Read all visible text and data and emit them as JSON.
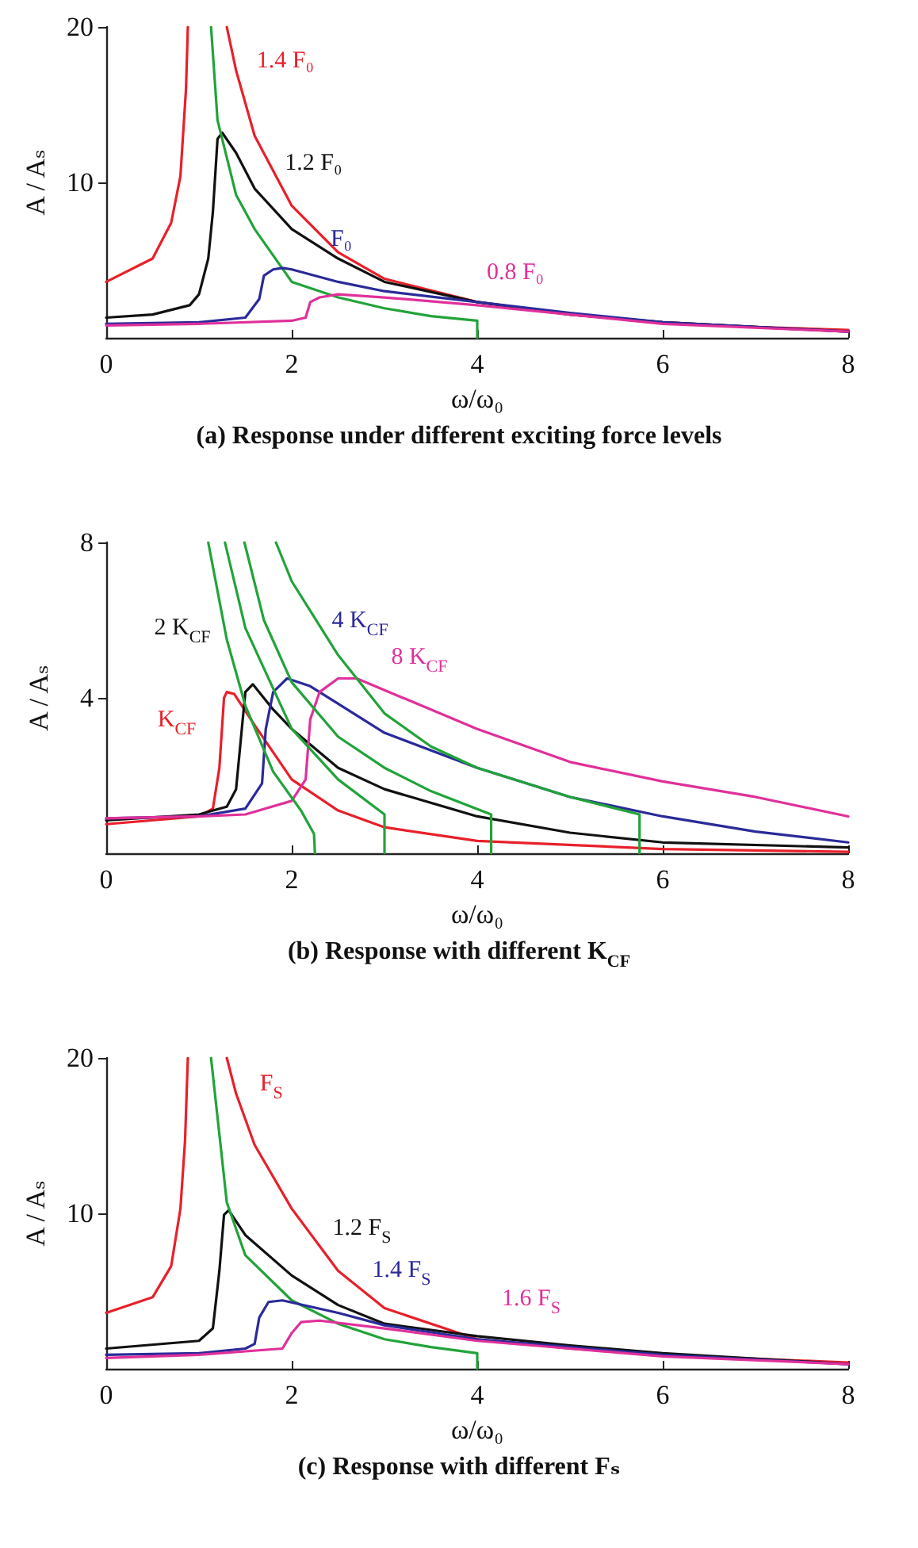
{
  "chart_data": [
    {
      "type": "line",
      "title": "(a) Response under different exciting force levels",
      "xlabel": "ω/ω₀",
      "ylabel": "A / Aₛ",
      "xlim": [
        0,
        8
      ],
      "xticks": [
        0,
        2,
        4,
        6,
        8
      ],
      "ylim": [
        0,
        20
      ],
      "yticks": [
        10,
        20
      ],
      "series": [
        {
          "name": "1.4 F₀",
          "color": "#e8202a",
          "x": [
            0,
            0.5,
            0.7,
            0.8,
            0.86,
            0.88,
            1.1,
            1.3,
            1.4,
            1.6,
            2,
            2.5,
            3,
            4,
            5,
            6,
            7,
            8
          ],
          "values": [
            3.6,
            5.1,
            7.4,
            10.4,
            16,
            20,
            null,
            20,
            17.2,
            13,
            8.5,
            5.5,
            3.8,
            2.3,
            1.5,
            1.0,
            0.7,
            0.5
          ]
        },
        {
          "name": "1.2 F₀",
          "color": "#111111",
          "x": [
            0,
            0.5,
            0.9,
            1,
            1.1,
            1.15,
            1.2,
            1.25,
            1.4,
            1.6,
            2,
            2.5,
            3,
            4,
            5,
            6,
            8
          ],
          "values": [
            1.3,
            1.5,
            2.1,
            2.8,
            5.1,
            8.1,
            12.8,
            13.2,
            11.9,
            9.6,
            7,
            5.1,
            3.6,
            2.3,
            1.5,
            1.0,
            0.4
          ]
        },
        {
          "color": "#22a33a",
          "x": [
            1.13,
            1.2,
            1.4,
            1.6,
            2,
            2.5,
            3,
            3.5,
            4,
            4
          ],
          "values": [
            20,
            14,
            9.2,
            7,
            3.6,
            2.6,
            1.9,
            1.4,
            1.1,
            0
          ]
        },
        {
          "name": "F₀",
          "color": "#2a2a9a",
          "x": [
            0,
            1,
            1.5,
            1.65,
            1.7,
            1.8,
            1.9,
            2,
            2.5,
            3,
            4,
            5,
            6,
            8
          ],
          "values": [
            0.9,
            1.0,
            1.3,
            2.5,
            4.0,
            4.4,
            4.5,
            4.4,
            3.6,
            3.0,
            2.3,
            1.6,
            1.0,
            0.4
          ]
        },
        {
          "name": "0.8 F₀",
          "color": "#e0309a",
          "x": [
            0,
            1,
            2,
            2.15,
            2.2,
            2.3,
            2.5,
            3,
            4,
            5,
            6,
            8
          ],
          "values": [
            0.8,
            0.9,
            1.1,
            1.3,
            2.3,
            2.6,
            2.8,
            2.6,
            2.1,
            1.5,
            0.9,
            0.4
          ]
        }
      ]
    },
    {
      "type": "line",
      "title": "(b) Response with different K$_{CF}$",
      "xlabel": "ω/ω₀",
      "ylabel": "A / Aₛ",
      "xlim": [
        0,
        8
      ],
      "xticks": [
        0,
        2,
        4,
        6,
        8
      ],
      "ylim": [
        0,
        8
      ],
      "yticks": [
        4,
        8
      ],
      "series": [
        {
          "name": "K$_{CF}$",
          "color": "#e8202a",
          "x": [
            0,
            1,
            1.15,
            1.22,
            1.27,
            1.3,
            1.38,
            1.6,
            2,
            2.5,
            3,
            4,
            6,
            8
          ],
          "values": [
            0.75,
            0.95,
            1.15,
            2.2,
            4.0,
            4.15,
            4.1,
            3.3,
            1.9,
            1.1,
            0.67,
            0.32,
            0.11,
            0.04
          ]
        },
        {
          "name": "2 K$_{CF}$",
          "color": "#111111",
          "x": [
            0,
            1,
            1.3,
            1.4,
            1.45,
            1.5,
            1.58,
            1.8,
            2,
            2.5,
            3,
            4,
            5,
            6,
            8
          ],
          "values": [
            0.85,
            1.0,
            1.2,
            1.65,
            2.9,
            4.15,
            4.35,
            3.7,
            3.2,
            2.2,
            1.65,
            0.95,
            0.53,
            0.28,
            0.15
          ]
        },
        {
          "name": "4 K$_{CF}$",
          "color": "#2a2a9a",
          "x": [
            0,
            1,
            1.5,
            1.68,
            1.72,
            1.8,
            1.95,
            2.2,
            2.5,
            3,
            4,
            5,
            6,
            7,
            8
          ],
          "values": [
            0.9,
            0.95,
            1.15,
            1.8,
            3.2,
            4.15,
            4.5,
            4.3,
            3.85,
            3.1,
            2.2,
            1.45,
            0.95,
            0.56,
            0.28
          ]
        },
        {
          "name": "8 K$_{CF}$",
          "color": "#e0309a",
          "x": [
            0,
            1,
            1.5,
            2,
            2.15,
            2.2,
            2.3,
            2.5,
            2.7,
            3,
            4,
            5,
            6,
            7,
            8
          ],
          "values": [
            0.9,
            0.95,
            1.0,
            1.35,
            1.9,
            3.45,
            4.15,
            4.5,
            4.5,
            4.2,
            3.2,
            2.35,
            1.85,
            1.45,
            0.95
          ]
        },
        {
          "color": "#22a33a",
          "x": [
            1.1,
            1.3,
            1.5,
            1.8,
            2.1,
            2.24,
            2.25
          ],
          "values": [
            8,
            5.5,
            3.8,
            2.1,
            1.1,
            0.5,
            0
          ]
        },
        {
          "color": "#22a33a",
          "x": [
            1.28,
            1.5,
            2,
            2.5,
            3,
            3
          ],
          "values": [
            8,
            5.8,
            3.2,
            1.9,
            1.0,
            0
          ]
        },
        {
          "color": "#22a33a",
          "x": [
            1.49,
            1.7,
            2,
            2.5,
            3,
            3.5,
            4.15,
            4.15
          ],
          "values": [
            8,
            6,
            4.4,
            3.0,
            2.2,
            1.6,
            1.0,
            0
          ]
        },
        {
          "color": "#22a33a",
          "x": [
            1.83,
            2,
            2.5,
            3,
            3.5,
            4,
            5,
            5.75,
            5.75
          ],
          "values": [
            8,
            7,
            5.1,
            3.6,
            2.75,
            2.2,
            1.45,
            1.0,
            0
          ]
        }
      ]
    },
    {
      "type": "line",
      "title": "(c) Response with different Fₛ",
      "xlabel": "ω/ω₀",
      "ylabel": "A / Aₛ",
      "xlim": [
        0,
        8
      ],
      "xticks": [
        0,
        2,
        4,
        6,
        8
      ],
      "ylim": [
        0,
        20
      ],
      "yticks": [
        10,
        20
      ],
      "series": [
        {
          "name": "F$_{S}$",
          "color": "#e8202a",
          "x": [
            0,
            0.5,
            0.7,
            0.8,
            0.85,
            0.88,
            1.1,
            1.3,
            1.4,
            1.6,
            2,
            2.5,
            3,
            4,
            5,
            6,
            8
          ],
          "values": [
            3.6,
            4.6,
            6.6,
            10.3,
            14.7,
            20,
            null,
            20,
            17.7,
            14.4,
            10.3,
            6.3,
            3.9,
            1.9,
            1.3,
            0.9,
            0.4
          ]
        },
        {
          "name": "1.2 F$_{S}$",
          "color": "#111111",
          "x": [
            0,
            1,
            1.15,
            1.22,
            1.27,
            1.32,
            1.5,
            2,
            2.5,
            3,
            4,
            5,
            6,
            8
          ],
          "values": [
            1.3,
            1.8,
            2.6,
            6.3,
            9.9,
            10.2,
            8.6,
            6.0,
            4.1,
            2.9,
            2.1,
            1.5,
            1.0,
            0.3
          ]
        },
        {
          "color": "#22a33a",
          "x": [
            1.13,
            1.3,
            1.5,
            2,
            2.5,
            3,
            3.5,
            4,
            4
          ],
          "values": [
            20,
            10.7,
            7.3,
            4.4,
            2.9,
            1.9,
            1.4,
            1.0,
            0
          ]
        },
        {
          "name": "1.4 F$_{S}$",
          "color": "#2a2a9a",
          "x": [
            0,
            1,
            1.5,
            1.6,
            1.65,
            1.75,
            1.9,
            2.5,
            3,
            4,
            5,
            6,
            8
          ],
          "values": [
            0.9,
            1.0,
            1.3,
            1.6,
            3.3,
            4.3,
            4.4,
            3.6,
            2.8,
            1.9,
            1.4,
            0.9,
            0.3
          ]
        },
        {
          "name": "1.6 F$_{S}$",
          "color": "#e0309a",
          "x": [
            0,
            1,
            1.9,
            2,
            2.1,
            2.3,
            3,
            4,
            5,
            6,
            8
          ],
          "values": [
            0.7,
            0.9,
            1.3,
            2.3,
            3.0,
            3.1,
            2.6,
            1.8,
            1.3,
            0.8,
            0.3
          ]
        }
      ]
    }
  ]
}
